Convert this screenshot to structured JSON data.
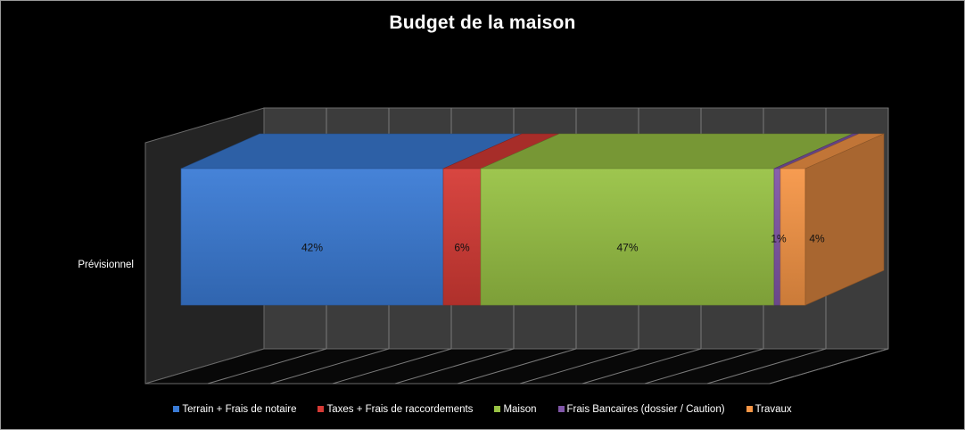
{
  "chart_data": {
    "type": "bar",
    "orientation": "horizontal",
    "stacked": "100%",
    "three_d": true,
    "title": "Budget de la maison",
    "categories": [
      "Prévisionnel"
    ],
    "series": [
      {
        "name": "Terrain + Frais de notaire",
        "values": [
          42
        ],
        "label": "42%",
        "color": "#3A7BD5"
      },
      {
        "name": "Taxes + Frais de raccordements",
        "values": [
          6
        ],
        "label": "6%",
        "color": "#D63A35"
      },
      {
        "name": "Maison",
        "values": [
          47
        ],
        "label": "47%",
        "color": "#98C244"
      },
      {
        "name": "Frais Bancaires (dossier / Caution)",
        "values": [
          1
        ],
        "label": "1%",
        "color": "#8056A8"
      },
      {
        "name": "Travaux",
        "values": [
          4
        ],
        "label": "4%",
        "color": "#F79646"
      }
    ],
    "xlim": [
      0,
      100
    ],
    "grid": true,
    "legend_position": "bottom",
    "background": "#000000"
  }
}
